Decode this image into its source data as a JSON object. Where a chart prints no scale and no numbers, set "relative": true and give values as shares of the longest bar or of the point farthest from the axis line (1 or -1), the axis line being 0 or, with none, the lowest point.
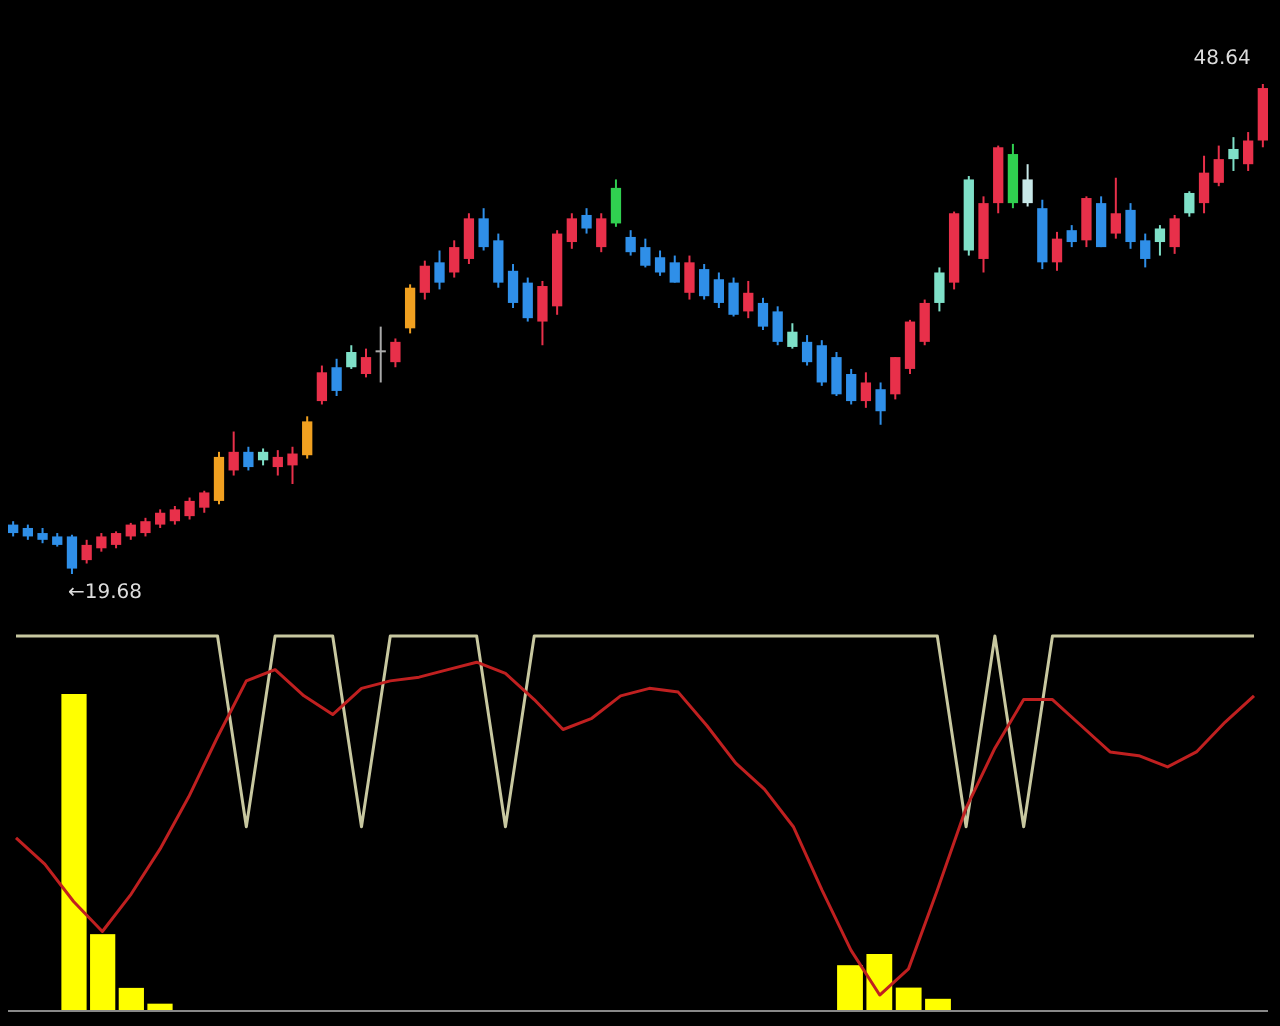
{
  "chart_data": [
    {
      "type": "candlestick",
      "categories": [
        null,
        null,
        null,
        null,
        null,
        null,
        null,
        null,
        null,
        null,
        null,
        null,
        null,
        null,
        null,
        null,
        null,
        null,
        null,
        null,
        null,
        null,
        null,
        null,
        null,
        null,
        null,
        null,
        null,
        null,
        null,
        null,
        null,
        null,
        null,
        null,
        null,
        null,
        null,
        null,
        null,
        null,
        null,
        null,
        null,
        null,
        null,
        null,
        null,
        null,
        null,
        null,
        null,
        null,
        null,
        null,
        null,
        null,
        null,
        null,
        null,
        null,
        null,
        null,
        null,
        null,
        null,
        null,
        null,
        null,
        null,
        null,
        null,
        null,
        null,
        null,
        null,
        null,
        null,
        null,
        null,
        null,
        null,
        null,
        null,
        null
      ],
      "ohlc": [
        [
          22.6,
          22.8,
          21.9,
          22.1
        ],
        [
          22.4,
          22.6,
          21.7,
          21.9
        ],
        [
          22.1,
          22.4,
          21.5,
          21.7
        ],
        [
          21.9,
          22.1,
          21.3,
          21.4
        ],
        [
          21.9,
          22.0,
          19.68,
          20.0
        ],
        [
          20.5,
          21.7,
          20.3,
          21.4
        ],
        [
          21.2,
          22.1,
          21.0,
          21.9
        ],
        [
          21.4,
          22.2,
          21.2,
          22.1
        ],
        [
          21.9,
          22.7,
          21.7,
          22.6
        ],
        [
          22.1,
          23.0,
          21.9,
          22.8
        ],
        [
          22.6,
          23.5,
          22.4,
          23.3
        ],
        [
          22.8,
          23.7,
          22.6,
          23.5
        ],
        [
          23.1,
          24.2,
          22.9,
          24.0
        ],
        [
          23.6,
          24.6,
          23.3,
          24.5
        ],
        [
          24.0,
          26.9,
          23.8,
          26.6
        ],
        [
          25.8,
          28.1,
          25.5,
          26.9
        ],
        [
          26.9,
          27.2,
          25.8,
          26.0
        ],
        [
          26.4,
          27.1,
          26.1,
          26.9
        ],
        [
          26.0,
          27.0,
          25.5,
          26.6
        ],
        [
          26.1,
          27.2,
          25.0,
          26.8
        ],
        [
          26.7,
          29.0,
          26.5,
          28.7
        ],
        [
          29.9,
          32.0,
          29.7,
          31.6
        ],
        [
          31.9,
          32.4,
          30.2,
          30.5
        ],
        [
          31.9,
          33.2,
          31.8,
          32.8
        ],
        [
          31.5,
          33.0,
          31.3,
          32.5
        ],
        [
          32.8,
          34.3,
          31.0,
          32.9
        ],
        [
          32.2,
          33.6,
          31.9,
          33.4
        ],
        [
          34.2,
          36.8,
          33.9,
          36.6
        ],
        [
          36.3,
          38.2,
          35.9,
          37.9
        ],
        [
          38.1,
          38.8,
          36.5,
          36.9
        ],
        [
          37.5,
          39.4,
          37.2,
          39.0
        ],
        [
          38.3,
          41.0,
          38.0,
          40.7
        ],
        [
          40.7,
          41.3,
          38.8,
          39.0
        ],
        [
          39.4,
          39.8,
          36.6,
          36.9
        ],
        [
          37.6,
          38.0,
          35.4,
          35.7
        ],
        [
          36.9,
          37.2,
          34.6,
          34.8
        ],
        [
          34.6,
          37.0,
          33.2,
          36.7
        ],
        [
          35.5,
          40.0,
          35.0,
          39.8
        ],
        [
          39.3,
          41.0,
          38.9,
          40.7
        ],
        [
          40.9,
          41.3,
          39.8,
          40.1
        ],
        [
          39.0,
          41.0,
          38.7,
          40.7
        ],
        [
          40.4,
          43.0,
          40.2,
          42.5
        ],
        [
          39.6,
          40.0,
          38.5,
          38.7
        ],
        [
          39.0,
          39.5,
          37.8,
          37.9
        ],
        [
          38.4,
          38.8,
          37.3,
          37.5
        ],
        [
          38.1,
          38.5,
          36.9,
          36.9
        ],
        [
          36.3,
          38.5,
          35.9,
          38.1
        ],
        [
          37.7,
          38.0,
          35.9,
          36.1
        ],
        [
          37.1,
          37.5,
          35.4,
          35.7
        ],
        [
          36.9,
          37.2,
          34.9,
          35.0
        ],
        [
          35.2,
          37.0,
          34.8,
          36.3
        ],
        [
          35.7,
          36.0,
          34.1,
          34.3
        ],
        [
          35.2,
          35.5,
          33.2,
          33.4
        ],
        [
          34.0,
          34.5,
          33.0,
          33.1
        ],
        [
          33.4,
          33.8,
          32.0,
          32.2
        ],
        [
          33.2,
          33.5,
          30.8,
          31.0
        ],
        [
          32.5,
          32.8,
          30.2,
          30.3
        ],
        [
          31.5,
          31.8,
          29.7,
          29.9
        ],
        [
          29.9,
          31.6,
          29.5,
          31.0
        ],
        [
          30.6,
          31.0,
          28.5,
          29.3
        ],
        [
          30.3,
          32.5,
          30.0,
          32.5
        ],
        [
          31.8,
          34.7,
          31.5,
          34.6
        ],
        [
          33.4,
          35.9,
          33.2,
          35.7
        ],
        [
          35.7,
          37.8,
          35.2,
          37.5
        ],
        [
          36.9,
          41.1,
          36.5,
          41.0
        ],
        [
          38.8,
          43.2,
          38.5,
          43.0
        ],
        [
          38.3,
          42.0,
          37.5,
          41.6
        ],
        [
          41.6,
          45.0,
          41.0,
          44.9
        ],
        [
          41.6,
          45.1,
          41.3,
          44.5
        ],
        [
          43.0,
          43.9,
          41.4,
          41.6
        ],
        [
          41.3,
          41.8,
          37.7,
          38.1
        ],
        [
          38.1,
          39.9,
          37.6,
          39.5
        ],
        [
          40.0,
          40.3,
          39.0,
          39.3
        ],
        [
          39.4,
          42.0,
          39.0,
          41.9
        ],
        [
          41.6,
          42.0,
          39.0,
          39.0
        ],
        [
          39.8,
          43.1,
          39.5,
          41.0
        ],
        [
          41.2,
          41.6,
          38.9,
          39.3
        ],
        [
          39.4,
          39.8,
          37.8,
          38.3
        ],
        [
          39.3,
          40.3,
          38.5,
          40.1
        ],
        [
          39.0,
          40.9,
          38.6,
          40.7
        ],
        [
          41.0,
          42.3,
          40.8,
          42.2
        ],
        [
          41.6,
          44.4,
          41.0,
          43.4
        ],
        [
          42.8,
          45.0,
          42.6,
          44.2
        ],
        [
          44.2,
          45.5,
          43.5,
          44.8
        ],
        [
          43.9,
          45.8,
          43.5,
          45.3
        ],
        [
          45.3,
          48.64,
          44.9,
          48.4
        ]
      ],
      "colors": [
        "#2f8fe8",
        "#2f8fe8",
        "#2f8fe8",
        "#2f8fe8",
        "#2f8fe8",
        "#e8304a",
        "#e8304a",
        "#e8304a",
        "#e8304a",
        "#e8304a",
        "#e8304a",
        "#e8304a",
        "#e8304a",
        "#e8304a",
        "#f0a020",
        "#e8304a",
        "#2f8fe8",
        "#7fe0c8",
        "#e8304a",
        "#e8304a",
        "#f0a020",
        "#e8304a",
        "#2f8fe8",
        "#7fe0c8",
        "#e8304a",
        "#aaaaaa",
        "#e8304a",
        "#f0a020",
        "#e8304a",
        "#2f8fe8",
        "#e8304a",
        "#e8304a",
        "#2f8fe8",
        "#2f8fe8",
        "#2f8fe8",
        "#2f8fe8",
        "#e8304a",
        "#e8304a",
        "#e8304a",
        "#2f8fe8",
        "#e8304a",
        "#30d050",
        "#2f8fe8",
        "#2f8fe8",
        "#2f8fe8",
        "#2f8fe8",
        "#e8304a",
        "#2f8fe8",
        "#2f8fe8",
        "#2f8fe8",
        "#e8304a",
        "#2f8fe8",
        "#2f8fe8",
        "#7fe0c8",
        "#2f8fe8",
        "#2f8fe8",
        "#2f8fe8",
        "#2f8fe8",
        "#e8304a",
        "#2f8fe8",
        "#e8304a",
        "#e8304a",
        "#e8304a",
        "#7fe0c8",
        "#e8304a",
        "#7fe0c8",
        "#e8304a",
        "#e8304a",
        "#30d050",
        "#c8e8e8",
        "#2f8fe8",
        "#e8304a",
        "#2f8fe8",
        "#e8304a",
        "#2f8fe8",
        "#e8304a",
        "#2f8fe8",
        "#2f8fe8",
        "#7fe0c8",
        "#e8304a",
        "#7fe0c8",
        "#e8304a",
        "#e8304a",
        "#7fe0c8",
        "#e8304a",
        "#e8304a"
      ],
      "annotations": [
        "←19.68",
        "48.64"
      ]
    },
    {
      "type": "line",
      "relative": true,
      "categories": [
        null,
        null,
        null,
        null,
        null,
        null,
        null,
        null,
        null,
        null,
        null,
        null,
        null,
        null,
        null,
        null,
        null,
        null,
        null,
        null,
        null,
        null,
        null,
        null,
        null,
        null,
        null,
        null,
        null,
        null,
        null,
        null,
        null,
        null,
        null,
        null,
        null,
        null,
        null,
        null,
        null,
        null,
        null,
        null
      ],
      "series": [
        {
          "type": "line",
          "color": "#c8c8a0",
          "values": [
            1,
            1,
            1,
            1,
            1,
            1,
            1,
            1,
            0.49,
            1,
            1,
            1,
            0.49,
            1,
            1,
            1,
            1,
            0.49,
            1,
            1,
            1,
            1,
            1,
            1,
            1,
            1,
            1,
            1,
            1,
            1,
            1,
            1,
            1,
            0.49,
            1,
            0.49,
            1,
            1,
            1,
            1,
            1,
            1,
            1,
            1
          ]
        },
        {
          "type": "line",
          "color": "#c02020",
          "values": [
            0.46,
            0.39,
            0.29,
            0.21,
            0.31,
            0.43,
            0.57,
            0.73,
            0.88,
            0.91,
            0.84,
            0.79,
            0.86,
            0.88,
            0.89,
            0.91,
            0.93,
            0.9,
            0.83,
            0.75,
            0.78,
            0.84,
            0.86,
            0.85,
            0.76,
            0.66,
            0.59,
            0.49,
            0.32,
            0.16,
            0.04,
            0.11,
            0.32,
            0.54,
            0.7,
            0.83,
            0.83,
            0.76,
            0.69,
            0.68,
            0.65,
            0.69,
            0.77,
            0.84
          ]
        }
      ]
    },
    {
      "type": "bar",
      "relative": true,
      "categories": [
        null,
        null,
        null,
        null
      ],
      "color": "#ffff00",
      "values": [
        1,
        0.24,
        0.07,
        0.02
      ]
    },
    {
      "type": "bar",
      "relative": true,
      "categories": [
        null,
        null,
        null,
        null
      ],
      "color": "#ffff00",
      "values": [
        0.8,
        1,
        0.4,
        0.2
      ]
    }
  ]
}
